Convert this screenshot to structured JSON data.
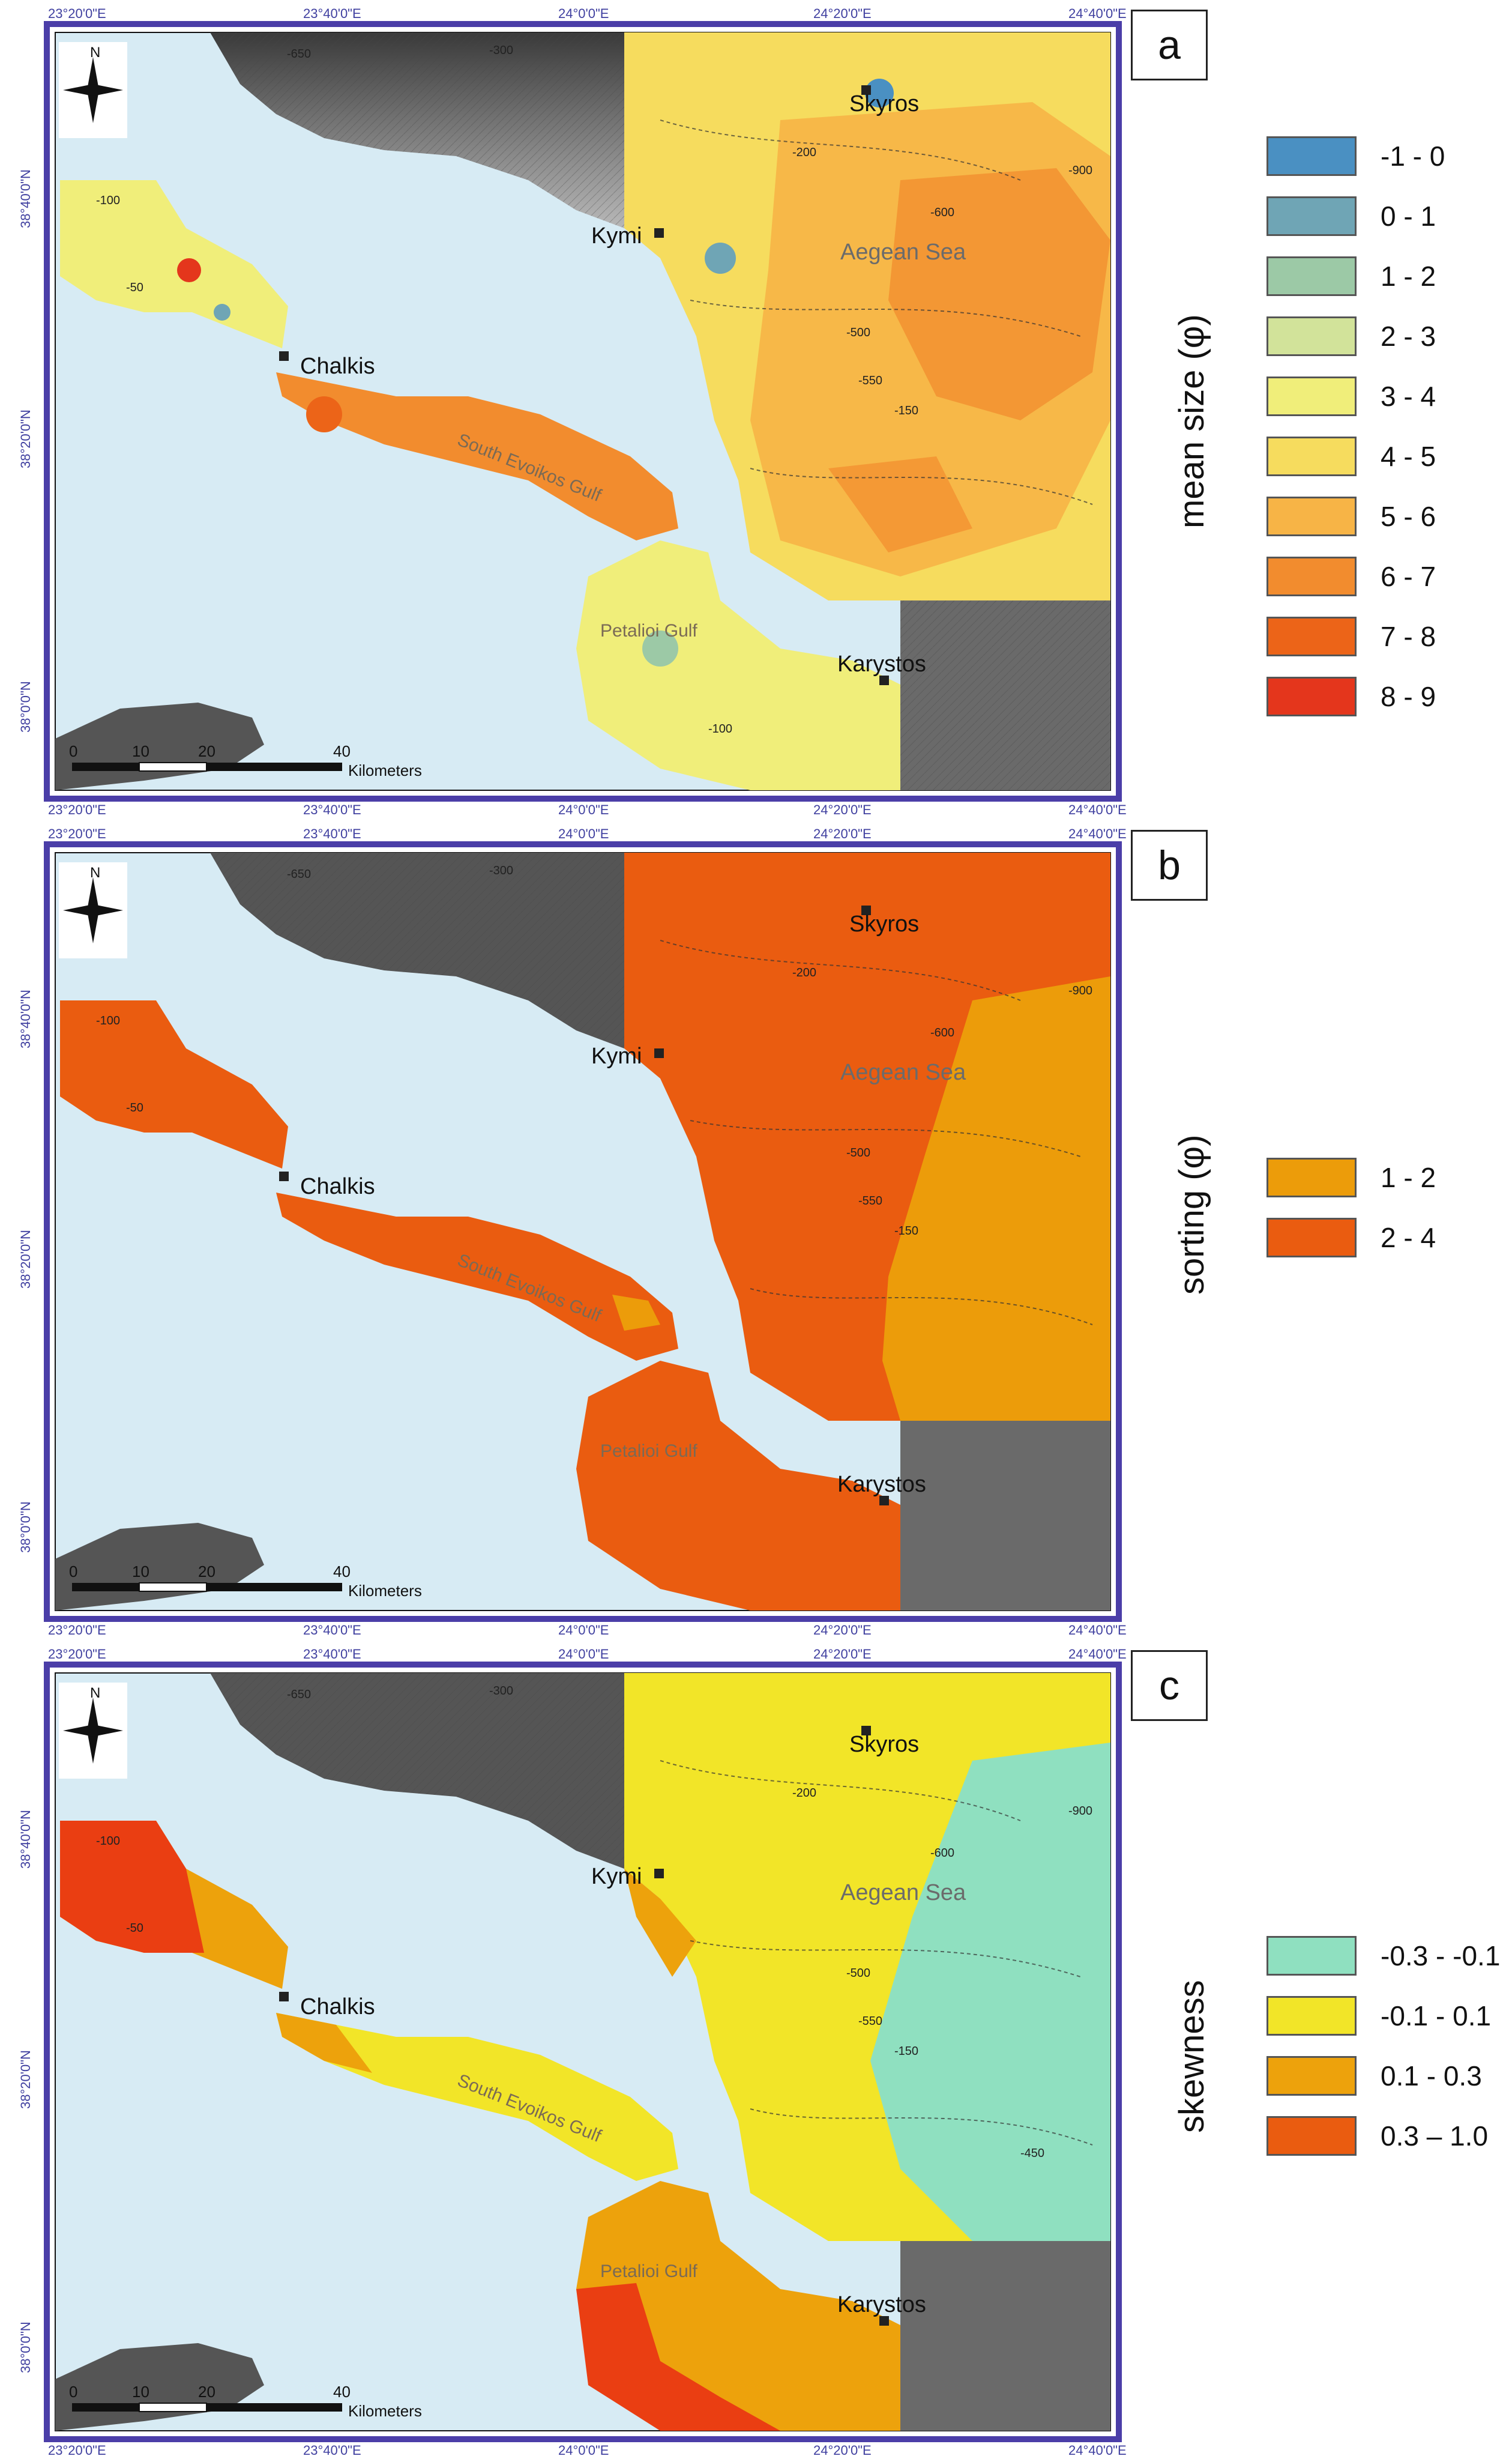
{
  "axes": {
    "x_ticks": [
      "23°20'0\"E",
      "23°40'0\"E",
      "24°0'0\"E",
      "24°20'0\"E",
      "24°40'0\"E"
    ],
    "y_ticks": [
      "38°40'0\"N",
      "38°20'0\"N",
      "38°0'0\"N"
    ]
  },
  "places": {
    "skyros": "Skyros",
    "kymi": "Kymi",
    "chalkis": "Chalkis",
    "karystos": "Karystos",
    "aegean": "Aegean Sea",
    "south_evoikos": "South Evoikos Gulf",
    "petalioi": "Petalioi Gulf"
  },
  "depths": [
    "-650",
    "-300",
    "-200",
    "-150",
    "-100",
    "-50",
    "-500",
    "-550",
    "-600",
    "-900",
    "-450"
  ],
  "scale_bar": {
    "labels": [
      "0",
      "10",
      "20",
      "40"
    ],
    "unit": "Kilometers"
  },
  "north_label": "N",
  "panels": [
    {
      "letter": "a",
      "variable": "mean size (φ)",
      "legend": [
        {
          "label": "-1 - 0",
          "color": "#4a90c2"
        },
        {
          "label": "0 - 1",
          "color": "#6fa5b5"
        },
        {
          "label": "1 - 2",
          "color": "#9cc9a6"
        },
        {
          "label": "2 - 3",
          "color": "#d2e39a"
        },
        {
          "label": "3 - 4",
          "color": "#f0ee7a"
        },
        {
          "label": "4 - 5",
          "color": "#f6dc5e"
        },
        {
          "label": "5 - 6",
          "color": "#f7b446"
        },
        {
          "label": "6 - 7",
          "color": "#f28c2e"
        },
        {
          "label": "7 - 8",
          "color": "#ec6418"
        },
        {
          "label": "8 - 9",
          "color": "#e4361c"
        }
      ]
    },
    {
      "letter": "b",
      "variable": "sorting (φ)",
      "legend": [
        {
          "label": "1 - 2",
          "color": "#ec9c0a"
        },
        {
          "label": "2 - 4",
          "color": "#ea5c10"
        }
      ]
    },
    {
      "letter": "c",
      "variable": "skewness",
      "legend": [
        {
          "label": "-0.3 - -0.1",
          "color": "#8fe0c0"
        },
        {
          "label": "-0.1 - 0.1",
          "color": "#f2e528"
        },
        {
          "label": "0.1 - 0.3",
          "color": "#eda20c"
        },
        {
          "label": "0.3 – 1.0",
          "color": "#ea5c10"
        }
      ]
    }
  ]
}
